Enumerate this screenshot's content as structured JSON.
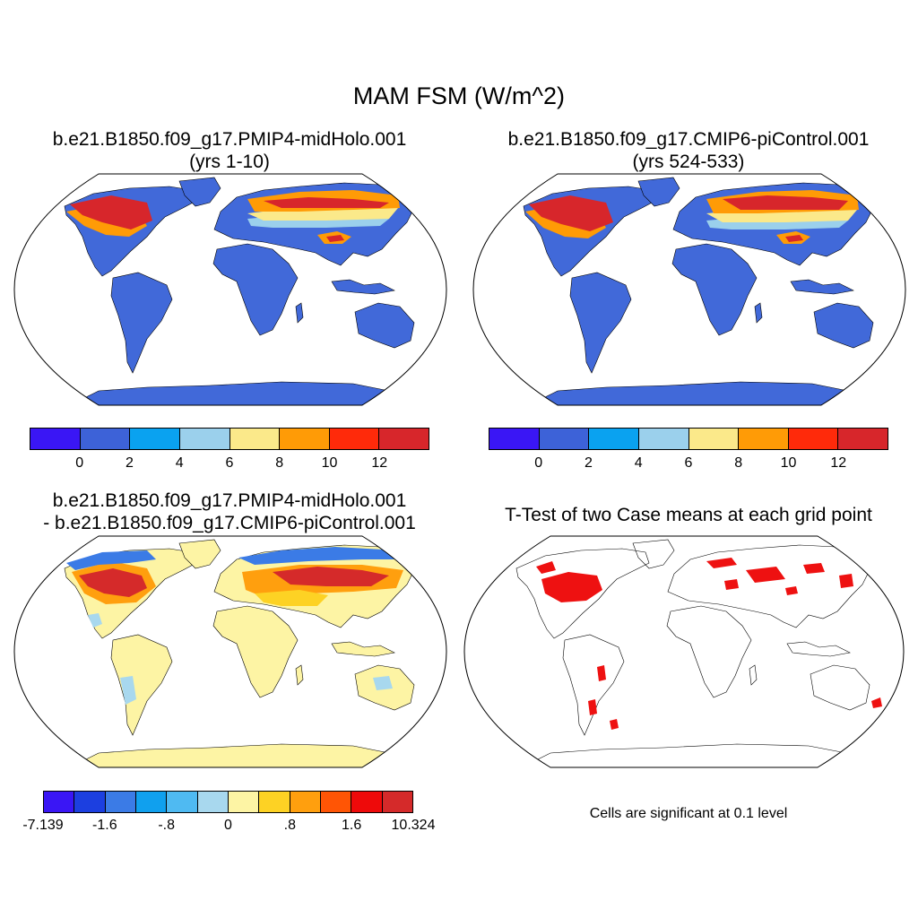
{
  "main_title": "MAM FSM (W/m^2)",
  "panels": {
    "top_left": {
      "title_line1": "b.e21.B1850.f09_g17.PMIP4-midHolo.001",
      "title_line2": "(yrs 1-10)"
    },
    "top_right": {
      "title_line1": "b.e21.B1850.f09_g17.CMIP6-piControl.001",
      "title_line2": "(yrs 524-533)"
    },
    "bottom_left": {
      "title_line1": "b.e21.B1850.f09_g17.PMIP4-midHolo.001",
      "title_line2": "- b.e21.B1850.f09_g17.CMIP6-piControl.001"
    },
    "bottom_right": {
      "title_line1": "T-Test of two Case means at each grid point",
      "note": "Cells are significant at 0.1 level"
    }
  },
  "colorbar_top": {
    "colors": [
      "#3a16f5",
      "#3d62d8",
      "#0aa2f0",
      "#9bd0ec",
      "#fbe98a",
      "#ff9b06",
      "#ff2a0a",
      "#d7262b"
    ],
    "labels": [
      "0",
      "2",
      "4",
      "6",
      "8",
      "10",
      "12"
    ]
  },
  "colorbar_diff": {
    "colors": [
      "#3a16f5",
      "#1c3fe0",
      "#3b7be6",
      "#10a0ee",
      "#4fbaf2",
      "#a8d8ee",
      "#fdf4a4",
      "#fdd224",
      "#ff9f0e",
      "#ff5505",
      "#ee0a0a",
      "#d52a2a"
    ],
    "labels": [
      "-7.139",
      "-1.6",
      "-.8",
      "0",
      ".8",
      "1.6",
      "10.324"
    ]
  },
  "palette": {
    "base_land": "#4169d9",
    "diff_land": "#fdf4a4",
    "sig_red": "#ee1111",
    "coast": "#000000"
  }
}
